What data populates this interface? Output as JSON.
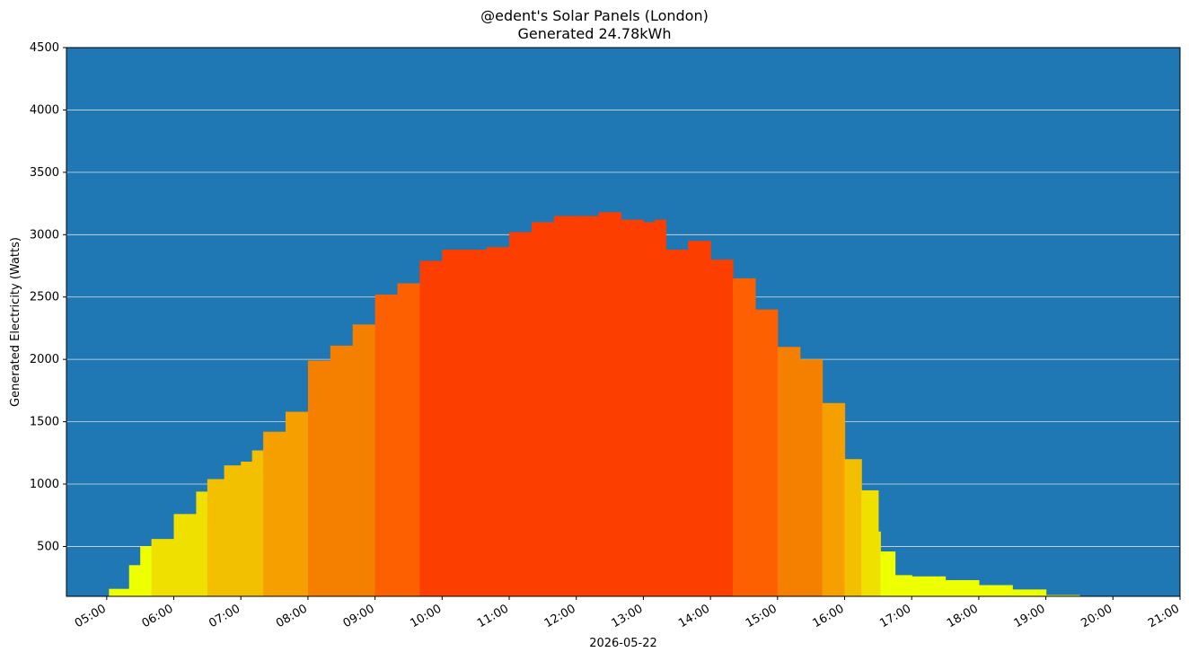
{
  "chart_data": {
    "type": "bar",
    "title": "@edent's Solar Panels (London)",
    "subtitle": "Generated 24.78kWh",
    "xlabel": "2026-05-22",
    "ylabel": "Generated Electricity (Watts)",
    "ylim": [
      100,
      4500
    ],
    "xlim": [
      "04:24",
      "21:00"
    ],
    "yticks": [
      500,
      1000,
      1500,
      2000,
      2500,
      3000,
      3500,
      4000,
      4500
    ],
    "xticks": [
      "05:00",
      "06:00",
      "07:00",
      "08:00",
      "09:00",
      "10:00",
      "11:00",
      "12:00",
      "13:00",
      "14:00",
      "15:00",
      "16:00",
      "17:00",
      "18:00",
      "19:00",
      "20:00",
      "21:00"
    ],
    "grid": "horizontal",
    "background_color": "#1f77b4",
    "grid_color": "#dddddd",
    "x": [
      "05:02",
      "05:20",
      "05:30",
      "05:40",
      "06:00",
      "06:20",
      "06:30",
      "06:45",
      "07:00",
      "07:10",
      "07:20",
      "07:40",
      "08:00",
      "08:20",
      "08:40",
      "09:00",
      "09:20",
      "09:40",
      "10:00",
      "10:20",
      "10:40",
      "11:00",
      "11:20",
      "11:40",
      "12:00",
      "12:20",
      "12:40",
      "13:00",
      "13:10",
      "13:20",
      "13:40",
      "14:00",
      "14:20",
      "14:40",
      "15:00",
      "15:20",
      "15:40",
      "16:00",
      "16:15",
      "16:30",
      "16:32",
      "16:45",
      "17:00",
      "17:30",
      "18:00",
      "18:30",
      "19:00",
      "19:30",
      "20:00",
      "20:30",
      "21:00"
    ],
    "values": [
      160,
      350,
      500,
      560,
      760,
      940,
      1040,
      1150,
      1180,
      1270,
      1420,
      1580,
      1990,
      2110,
      2280,
      2520,
      2610,
      2790,
      2880,
      2880,
      2900,
      3020,
      3100,
      3150,
      3150,
      3180,
      3120,
      3100,
      3120,
      2880,
      2950,
      2800,
      2650,
      2400,
      2100,
      2000,
      1650,
      1200,
      950,
      620,
      460,
      270,
      260,
      230,
      190,
      155,
      110,
      100,
      100,
      100,
      100
    ],
    "colors": [
      "#eeff00",
      "#f0e000",
      "#f2c000",
      "#f5a000",
      "#f58000",
      "#fc6000",
      "#fc3e00"
    ]
  }
}
